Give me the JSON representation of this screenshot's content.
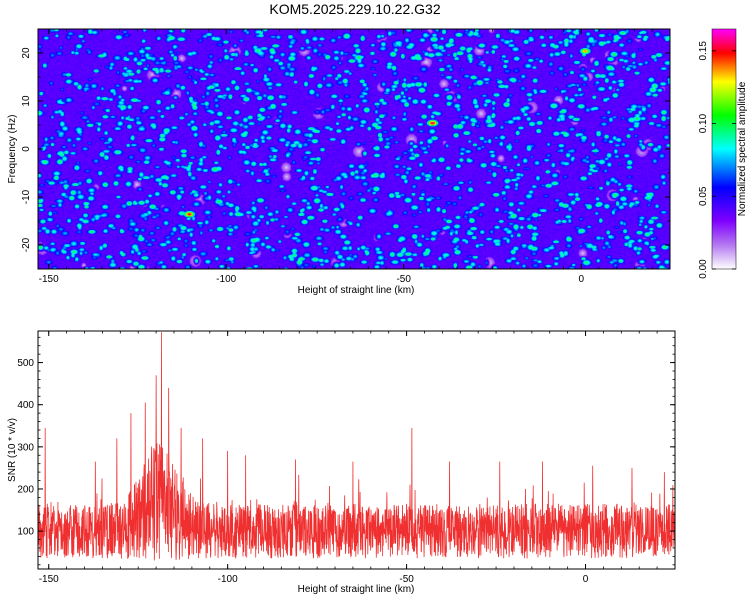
{
  "title": "KOM5.2025.229.10.22.G32",
  "chart_data": [
    {
      "type": "heatmap",
      "xlabel": "Height of straight line (km)",
      "ylabel": "Frequency (Hz)",
      "xlim": [
        -153,
        25
      ],
      "ylim": [
        -25,
        25
      ],
      "xticks": [
        -150,
        -100,
        -50,
        0
      ],
      "yticks": [
        -20,
        -10,
        0,
        10,
        20
      ],
      "colorbar": {
        "label": "Normalized spectral amplitude",
        "range": [
          0.0,
          0.165
        ],
        "ticks": [
          0.0,
          0.05,
          0.1,
          0.15
        ],
        "colors": [
          "#ffffff",
          "#7f00ff",
          "#0000ff",
          "#00ffff",
          "#00ff00",
          "#ffff00",
          "#ff0000",
          "#ff00ff"
        ]
      },
      "hotspots": [
        {
          "x": -110.5,
          "y": -13.5,
          "value": 0.155
        },
        {
          "x": -42,
          "y": 5.5,
          "value": 0.16
        },
        {
          "x": 1,
          "y": 20.5,
          "value": 0.14
        },
        {
          "x": -98,
          "y": 4,
          "value": 0.09
        },
        {
          "x": -127,
          "y": 20,
          "value": 0.08
        },
        {
          "x": -56,
          "y": 21,
          "value": 0.08
        },
        {
          "x": -74,
          "y": -18.5,
          "value": 0.08
        }
      ]
    },
    {
      "type": "line",
      "xlabel": "Height of straight line (km)",
      "ylabel": "SNR (10 * v/v)",
      "xlim": [
        -153,
        25
      ],
      "ylim": [
        10,
        575
      ],
      "xticks": [
        -150,
        -100,
        -50,
        0
      ],
      "yticks": [
        100,
        200,
        300,
        400,
        500
      ],
      "color": "#f03030",
      "peaks": [
        {
          "x": -151,
          "y": 345
        },
        {
          "x": -137,
          "y": 265
        },
        {
          "x": -131,
          "y": 320
        },
        {
          "x": -127,
          "y": 380
        },
        {
          "x": -123,
          "y": 405
        },
        {
          "x": -120,
          "y": 470
        },
        {
          "x": -118.5,
          "y": 572
        },
        {
          "x": -116.5,
          "y": 440
        },
        {
          "x": -113,
          "y": 345
        },
        {
          "x": -107,
          "y": 320
        },
        {
          "x": -100,
          "y": 290
        },
        {
          "x": -95,
          "y": 280
        },
        {
          "x": -81,
          "y": 270
        },
        {
          "x": -65,
          "y": 265
        },
        {
          "x": -48.5,
          "y": 345
        },
        {
          "x": -38,
          "y": 265
        },
        {
          "x": -24,
          "y": 265
        },
        {
          "x": -12,
          "y": 265
        },
        {
          "x": 2,
          "y": 255
        },
        {
          "x": 13,
          "y": 250
        },
        {
          "x": 22,
          "y": 240
        }
      ]
    }
  ]
}
